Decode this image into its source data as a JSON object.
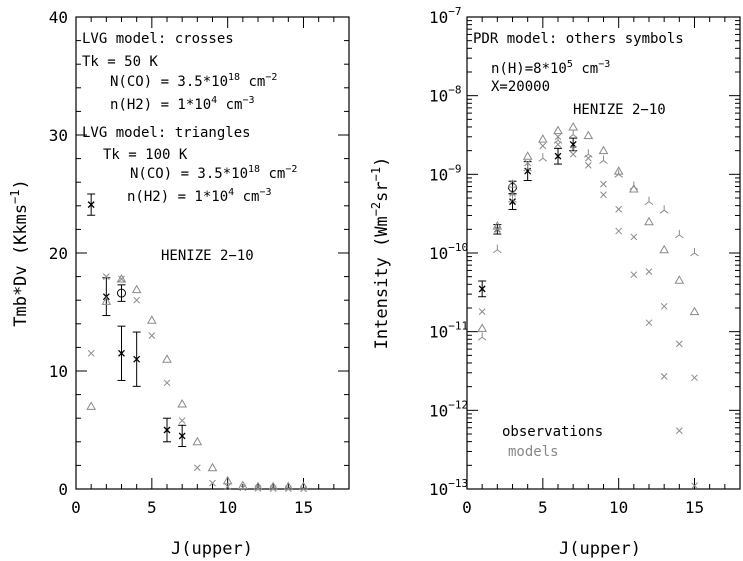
{
  "chart_data": [
    {
      "type": "scatter",
      "xlabel": "J(upper)",
      "ylabel": "Tmb*Dv (Kkms",
      "ylabel_sup": "−1",
      "ylabel_close": ")",
      "xlim": [
        0,
        18
      ],
      "ylim": [
        0,
        40
      ],
      "x_ticks": [
        0,
        5,
        10,
        15
      ],
      "y_ticks": [
        0,
        10,
        20,
        30,
        40
      ],
      "annotations": {
        "l1": "LVG model: crosses",
        "l2": "Tk = 50 K",
        "l3a": "N(CO) = 3.5*10",
        "l3b": "18",
        "l3c": " cm",
        "l3d": "−2",
        "l4a": "n(H2) = 1*10",
        "l4b": "4",
        "l4c": " cm",
        "l4d": "−3",
        "l5": "LVG model: triangles",
        "l6": "Tk = 100 K",
        "l7a": "N(CO) = 3.5*10",
        "l7b": "18",
        "l7c": " cm",
        "l7d": "−2",
        "l8a": "n(H2) = 1*10",
        "l8b": "4",
        "l8c": " cm",
        "l8d": "−3",
        "source": "HENIZE 2−10"
      },
      "series": [
        {
          "marker": "cross-obs",
          "x": [
            1,
            2,
            3,
            4,
            6,
            7
          ],
          "y": [
            24.1,
            16.3,
            11.5,
            11.0,
            5.0,
            4.5
          ],
          "err": [
            0.9,
            1.6,
            2.3,
            2.3,
            1.0,
            0.9
          ]
        },
        {
          "marker": "circle-obs",
          "x": [
            3
          ],
          "y": [
            16.6
          ],
          "err": [
            0.7
          ]
        },
        {
          "marker": "cross",
          "x": [
            1,
            2,
            3,
            4,
            5,
            6,
            7,
            8,
            9,
            10,
            11,
            12,
            13,
            14,
            15
          ],
          "y": [
            11.5,
            18.0,
            17.8,
            16.0,
            13.0,
            9.0,
            5.8,
            1.8,
            0.5,
            0.2,
            0.1,
            0.05,
            0.03,
            0.02,
            0.01
          ]
        },
        {
          "marker": "triangle",
          "x": [
            1,
            2,
            3,
            4,
            5,
            6,
            7,
            8,
            9,
            10,
            11,
            12,
            13,
            14,
            15
          ],
          "y": [
            7.0,
            15.9,
            17.8,
            16.9,
            14.3,
            11.0,
            7.2,
            4.0,
            1.8,
            0.7,
            0.3,
            0.2,
            0.2,
            0.2,
            0.2
          ]
        }
      ]
    },
    {
      "type": "scatter",
      "xlabel": "J(upper)",
      "ylabel": "Intensity (Wm",
      "ylabel_sup1": "−2",
      "ylabel_mid": "sr",
      "ylabel_sup2": "−1",
      "ylabel_close": ")",
      "log_y": true,
      "xlim": [
        0,
        18
      ],
      "ylim_exp": [
        -13,
        -7
      ],
      "x_ticks": [
        0,
        5,
        10,
        15
      ],
      "y_ticks": [
        -13,
        -12,
        -11,
        -10,
        -9,
        -8,
        -7
      ],
      "tick_base": "10",
      "tick_exp": [
        "−13",
        "−12",
        "−11",
        "−10",
        "−9",
        "−8",
        "−7"
      ],
      "annotations": {
        "l1": "PDR model: others symbols",
        "l2a": "n(H)=8*10",
        "l2b": "5",
        "l2c": " cm",
        "l2d": "−3",
        "l3": "X=20000",
        "source": "HENIZE 2−10",
        "obs": "observations",
        "models": "models"
      },
      "series": [
        {
          "marker": "cross-obs",
          "x": [
            1,
            2,
            3,
            4,
            6,
            7
          ],
          "y": [
            3.5e-11,
            2e-10,
            4.5e-10,
            1.1e-09,
            1.7e-09,
            2.4e-09
          ],
          "err": [
            0.1,
            0.06,
            0.1,
            0.12,
            0.1,
            0.08
          ]
        },
        {
          "marker": "circle-obs",
          "x": [
            3
          ],
          "y": [
            6.8e-10
          ],
          "err": [
            0.08
          ]
        },
        {
          "marker": "cross",
          "x": [
            1,
            2,
            3,
            4,
            5,
            6,
            7,
            8,
            9,
            10,
            11,
            12,
            13,
            14,
            15
          ],
          "y": [
            1.8e-11,
            2e-10,
            5.7e-10,
            1.4e-09,
            2.3e-09,
            2.4e-09,
            1.8e-09,
            1.3e-09,
            5.5e-10,
            1.9e-10,
            5.3e-11,
            1.3e-11,
            2.7e-12,
            5.5e-13,
            1.1e-13
          ]
        },
        {
          "marker": "triangle",
          "x": [
            1,
            2,
            3,
            4,
            5,
            6,
            7,
            8,
            9,
            10,
            11,
            12,
            13,
            14,
            15
          ],
          "y": [
            1.1e-11,
            2.2e-10,
            7.5e-10,
            1.7e-09,
            2.8e-09,
            3.6e-09,
            4e-09,
            3.1e-09,
            2e-09,
            1.1e-09,
            6.5e-10,
            2.5e-10,
            1.1e-10,
            4.5e-11,
            1.8e-11
          ]
        },
        {
          "marker": "tri-down",
          "x": [
            1,
            2,
            3,
            4,
            5,
            6,
            7,
            8,
            9,
            10,
            11,
            12,
            13,
            14,
            15
          ],
          "y": [
            8.5e-12,
            1.1e-10,
            4.8e-10,
            1.2e-09,
            1.6e-09,
            2.7e-09,
            3.2e-09,
            1.8e-09,
            1.5e-09,
            1e-09,
            7e-10,
            4.5e-10,
            3.5e-10,
            1.7e-10,
            1e-10
          ]
        },
        {
          "marker": "cross-thin",
          "x": [
            6,
            7,
            8,
            9,
            10,
            11,
            12,
            13,
            14,
            15
          ],
          "y": [
            3e-09,
            2.1e-09,
            1.6e-09,
            7.5e-10,
            3.6e-10,
            1.6e-10,
            5.8e-11,
            2.1e-11,
            7e-12,
            2.6e-12
          ]
        }
      ]
    }
  ]
}
